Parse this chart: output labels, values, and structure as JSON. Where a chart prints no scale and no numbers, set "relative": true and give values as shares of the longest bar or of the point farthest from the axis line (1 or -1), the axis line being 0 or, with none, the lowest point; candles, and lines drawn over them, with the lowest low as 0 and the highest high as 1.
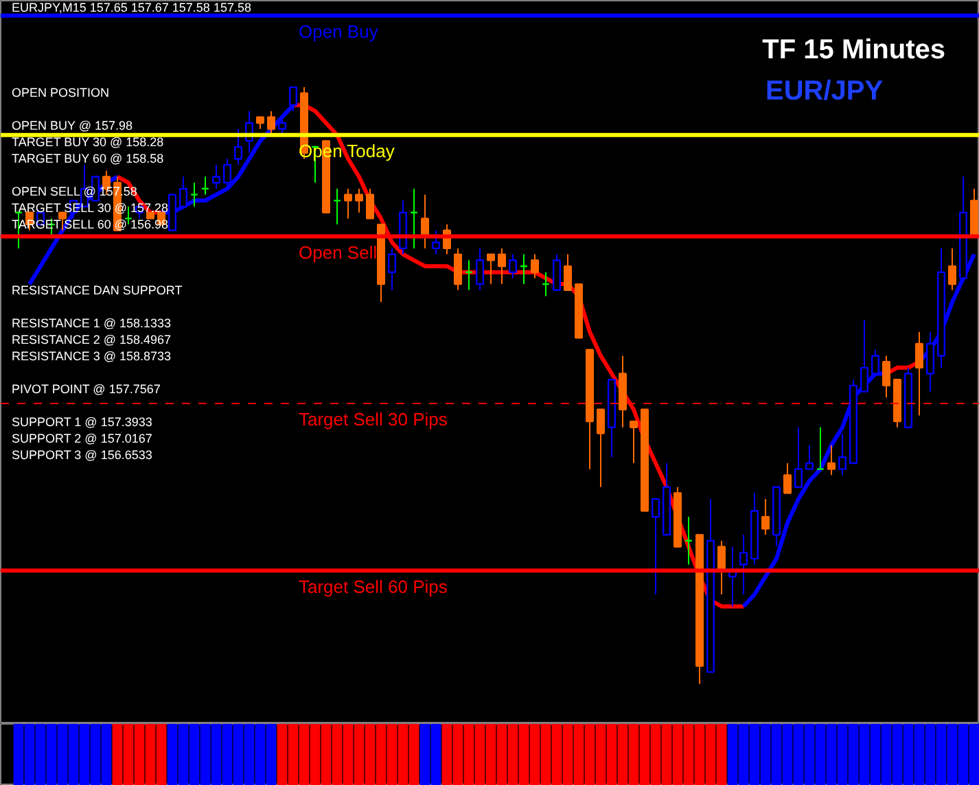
{
  "chart_data": [
    {
      "type": "candlestick",
      "relative": true,
      "title": "EURJPY,M15  157.65 157.67 157.58 157.58",
      "subtitle": "TF 15 Minutes",
      "annotations": [
        "EUR/JPY",
        "OPEN POSITION",
        "OPEN BUY @ 157.98",
        "TARGET BUY 30 @ 158.28",
        "TARGET BUY 60 @ 158.58",
        "OPEN SELL @ 157.58",
        "TARGET SELL 30 @ 157.28",
        "TARGET SELL 60 @ 156.98",
        "RESISTANCE DAN SUPPORT",
        "RESISTANCE 1 @ 158.1333",
        "RESISTANCE 2 @ 158.4967",
        "RESISTANCE 3 @ 158.8733",
        "PIVOT POINT @ 157.7567",
        "SUPPORT 1 @ 157.3933",
        "SUPPORT 2  @ 157.0167",
        "SUPPORT 3 @ 156.6533"
      ],
      "categories": [
        null,
        null,
        null,
        null,
        null,
        null,
        null,
        null,
        null,
        null,
        null,
        null,
        null,
        null,
        null,
        null,
        null,
        null,
        null,
        null,
        null,
        null,
        null,
        null,
        null,
        null,
        null,
        null,
        null,
        null,
        null,
        null,
        null,
        null,
        null,
        null,
        null,
        null,
        null,
        null,
        null,
        null,
        null,
        null,
        null,
        null,
        null,
        null,
        null,
        null,
        null,
        null,
        null,
        null,
        null,
        null,
        null,
        null,
        null,
        null,
        null,
        null,
        null,
        null,
        null,
        null,
        null,
        null,
        null,
        null,
        null,
        null,
        null,
        null,
        null,
        null,
        null,
        null,
        null,
        null,
        null,
        null,
        null,
        null,
        null,
        null,
        null,
        null
      ],
      "ohlc": [
        [
          0.79,
          0.79,
          0.73,
          0.79
        ],
        [
          0.79,
          0.79,
          0.76,
          0.77
        ],
        [
          0.77,
          0.79,
          0.77,
          0.79
        ],
        [
          0.77,
          0.78,
          0.75,
          0.77
        ],
        [
          0.79,
          0.79,
          0.76,
          0.78
        ],
        [
          0.79,
          0.81,
          0.78,
          0.81
        ],
        [
          0.8,
          0.87,
          0.8,
          0.83
        ],
        [
          0.81,
          0.85,
          0.81,
          0.85
        ],
        [
          0.85,
          0.86,
          0.82,
          0.83
        ],
        [
          0.84,
          0.85,
          0.76,
          0.76
        ],
        [
          0.78,
          0.8,
          0.77,
          0.78
        ],
        [
          0.79,
          0.8,
          0.78,
          0.8
        ],
        [
          0.79,
          0.79,
          0.78,
          0.78
        ],
        [
          0.79,
          0.79,
          0.77,
          0.77
        ],
        [
          0.76,
          0.82,
          0.76,
          0.82
        ],
        [
          0.8,
          0.85,
          0.8,
          0.83
        ],
        [
          0.82,
          0.84,
          0.8,
          0.82
        ],
        [
          0.83,
          0.85,
          0.82,
          0.83
        ],
        [
          0.84,
          0.87,
          0.83,
          0.85
        ],
        [
          0.84,
          0.88,
          0.83,
          0.87
        ],
        [
          0.88,
          0.93,
          0.87,
          0.9
        ],
        [
          0.91,
          0.96,
          0.89,
          0.94
        ],
        [
          0.95,
          0.95,
          0.93,
          0.94
        ],
        [
          0.95,
          0.96,
          0.92,
          0.93
        ],
        [
          0.93,
          0.95,
          0.92,
          0.94
        ],
        [
          0.97,
          1.0,
          0.96,
          1.0
        ],
        [
          0.99,
          1.0,
          0.88,
          0.89
        ],
        [
          0.9,
          0.9,
          0.84,
          0.9
        ],
        [
          0.91,
          0.91,
          0.79,
          0.79
        ],
        [
          0.81,
          0.83,
          0.77,
          0.81
        ],
        [
          0.82,
          0.83,
          0.78,
          0.81
        ],
        [
          0.82,
          0.83,
          0.79,
          0.81
        ],
        [
          0.82,
          0.83,
          0.78,
          0.78
        ],
        [
          0.77,
          0.77,
          0.64,
          0.67
        ],
        [
          0.69,
          0.73,
          0.66,
          0.72
        ],
        [
          0.73,
          0.81,
          0.72,
          0.79
        ],
        [
          0.79,
          0.83,
          0.73,
          0.79
        ],
        [
          0.78,
          0.82,
          0.73,
          0.75
        ],
        [
          0.73,
          0.76,
          0.72,
          0.74
        ],
        [
          0.76,
          0.77,
          0.72,
          0.73
        ],
        [
          0.72,
          0.73,
          0.66,
          0.67
        ],
        [
          0.69,
          0.71,
          0.66,
          0.69
        ],
        [
          0.67,
          0.73,
          0.66,
          0.71
        ],
        [
          0.72,
          0.72,
          0.67,
          0.71
        ],
        [
          0.72,
          0.73,
          0.67,
          0.7
        ],
        [
          0.69,
          0.72,
          0.68,
          0.71
        ],
        [
          0.7,
          0.72,
          0.67,
          0.7
        ],
        [
          0.71,
          0.72,
          0.68,
          0.69
        ],
        [
          0.67,
          0.69,
          0.65,
          0.67
        ],
        [
          0.66,
          0.72,
          0.66,
          0.71
        ],
        [
          0.7,
          0.72,
          0.66,
          0.66
        ],
        [
          0.67,
          0.67,
          0.58,
          0.58
        ],
        [
          0.56,
          0.56,
          0.36,
          0.44
        ],
        [
          0.46,
          0.46,
          0.33,
          0.42
        ],
        [
          0.43,
          0.51,
          0.38,
          0.51
        ],
        [
          0.52,
          0.55,
          0.43,
          0.46
        ],
        [
          0.44,
          0.44,
          0.37,
          0.43
        ],
        [
          0.46,
          0.46,
          0.29,
          0.29
        ],
        [
          0.28,
          0.31,
          0.15,
          0.31
        ],
        [
          0.25,
          0.37,
          0.25,
          0.33
        ],
        [
          0.32,
          0.33,
          0.23,
          0.23
        ],
        [
          0.24,
          0.28,
          0.2,
          0.24
        ],
        [
          0.25,
          0.25,
          0.0,
          0.03
        ],
        [
          0.02,
          0.31,
          0.02,
          0.24
        ],
        [
          0.23,
          0.24,
          0.15,
          0.19
        ],
        [
          0.18,
          0.23,
          0.13,
          0.19
        ],
        [
          0.2,
          0.25,
          0.15,
          0.22
        ],
        [
          0.21,
          0.32,
          0.2,
          0.29
        ],
        [
          0.28,
          0.31,
          0.25,
          0.26
        ],
        [
          0.25,
          0.33,
          0.23,
          0.33
        ],
        [
          0.35,
          0.37,
          0.32,
          0.32
        ],
        [
          0.33,
          0.43,
          0.33,
          0.36
        ],
        [
          0.36,
          0.4,
          0.36,
          0.37
        ],
        [
          0.36,
          0.43,
          0.36,
          0.36
        ],
        [
          0.37,
          0.4,
          0.35,
          0.36
        ],
        [
          0.36,
          0.42,
          0.35,
          0.38
        ],
        [
          0.37,
          0.51,
          0.37,
          0.5
        ],
        [
          0.49,
          0.61,
          0.49,
          0.53
        ],
        [
          0.52,
          0.56,
          0.52,
          0.55
        ],
        [
          0.54,
          0.55,
          0.48,
          0.5
        ],
        [
          0.51,
          0.51,
          0.43,
          0.44
        ],
        [
          0.43,
          0.53,
          0.43,
          0.52
        ],
        [
          0.57,
          0.59,
          0.45,
          0.53
        ],
        [
          0.52,
          0.59,
          0.49,
          0.57
        ],
        [
          0.55,
          0.73,
          0.53,
          0.69
        ],
        [
          0.7,
          0.73,
          0.66,
          0.67
        ],
        [
          0.68,
          0.85,
          0.68,
          0.79
        ],
        [
          0.81,
          0.83,
          0.75,
          0.75
        ]
      ],
      "colors": [
        "#00ff00",
        "#ff6a00",
        "#0000ff",
        "#00ff00",
        "#ff6a00",
        "#0000ff",
        "#0000ff",
        "#0000ff",
        "#ff6a00",
        "#ff6a00",
        "#00ff00",
        "#0000ff",
        "#ff6a00",
        "#ff6a00",
        "#0000ff",
        "#0000ff",
        "#00ff00",
        "#00ff00",
        "#0000ff",
        "#0000ff",
        "#0000ff",
        "#0000ff",
        "#ff6a00",
        "#ff6a00",
        "#0000ff",
        "#0000ff",
        "#ff6a00",
        "#00ff00",
        "#ff6a00",
        "#00ff00",
        "#ff6a00",
        "#ff6a00",
        "#ff6a00",
        "#ff6a00",
        "#0000ff",
        "#0000ff",
        "#00ff00",
        "#ff6a00",
        "#0000ff",
        "#ff6a00",
        "#ff6a00",
        "#00ff00",
        "#0000ff",
        "#ff6a00",
        "#ff6a00",
        "#0000ff",
        "#00ff00",
        "#ff6a00",
        "#00ff00",
        "#0000ff",
        "#ff6a00",
        "#ff6a00",
        "#ff6a00",
        "#ff6a00",
        "#0000ff",
        "#ff6a00",
        "#ff6a00",
        "#ff6a00",
        "#0000ff",
        "#0000ff",
        "#ff6a00",
        "#00ff00",
        "#ff6a00",
        "#0000ff",
        "#ff6a00",
        "#0000ff",
        "#0000ff",
        "#0000ff",
        "#ff6a00",
        "#0000ff",
        "#ff6a00",
        "#0000ff",
        "#0000ff",
        "#00ff00",
        "#ff6a00",
        "#0000ff",
        "#0000ff",
        "#0000ff",
        "#0000ff",
        "#ff6a00",
        "#ff6a00",
        "#0000ff",
        "#ff6a00",
        "#0000ff",
        "#0000ff",
        "#ff6a00",
        "#0000ff",
        "#ff6a00"
      ],
      "series": [
        {
          "type": "line",
          "color": "#ff0000",
          "values": [
            null,
            null,
            null,
            null,
            null,
            null,
            null,
            null,
            null,
            0.85,
            0.84,
            0.81,
            0.79,
            0.79,
            null,
            null,
            null,
            null,
            null,
            null,
            null,
            null,
            null,
            null,
            null,
            0.97,
            0.97,
            0.96,
            0.94,
            0.92,
            0.88,
            0.85,
            0.81,
            0.78,
            0.74,
            0.72,
            0.71,
            0.7,
            0.7,
            0.7,
            0.69,
            0.69,
            0.69,
            0.69,
            0.69,
            0.69,
            0.69,
            0.69,
            0.68,
            0.67,
            0.67,
            0.65,
            0.59,
            0.55,
            0.52,
            0.49,
            0.46,
            0.41,
            0.37,
            0.33,
            0.28,
            0.23,
            0.18,
            0.14,
            0.13,
            0.13,
            0.13,
            null,
            null,
            null,
            null,
            null,
            null,
            null,
            null,
            null,
            null,
            null,
            null,
            0.52,
            0.53,
            0.53,
            0.54,
            null,
            null,
            null,
            null,
            null
          ]
        },
        {
          "type": "line",
          "color": "#0000ff",
          "values": [
            null,
            0.67,
            0.7,
            0.73,
            0.76,
            0.79,
            0.81,
            0.82,
            0.84,
            0.85,
            null,
            null,
            null,
            0.79,
            0.79,
            0.8,
            0.81,
            0.81,
            0.82,
            0.83,
            0.85,
            0.88,
            0.91,
            0.93,
            0.95,
            0.97,
            null,
            null,
            null,
            null,
            null,
            null,
            null,
            null,
            null,
            null,
            null,
            null,
            null,
            null,
            null,
            null,
            null,
            null,
            null,
            null,
            null,
            null,
            null,
            null,
            null,
            null,
            null,
            null,
            null,
            null,
            null,
            null,
            null,
            null,
            null,
            null,
            null,
            null,
            null,
            null,
            0.13,
            0.15,
            0.18,
            0.21,
            0.27,
            0.31,
            0.34,
            0.36,
            0.4,
            0.43,
            0.48,
            0.5,
            0.52,
            0.52,
            null,
            null,
            0.54,
            0.56,
            0.59,
            0.64,
            0.68,
            0.72
          ]
        }
      ],
      "ref_lines": [
        {
          "axis": "y",
          "value": 1.12,
          "label": "Open Buy",
          "color": "#0000ff",
          "line_style": "solid"
        },
        {
          "axis": "y",
          "value": 0.92,
          "label": "Open Today",
          "color": "#ffff00",
          "line_style": "solid"
        },
        {
          "axis": "y",
          "value": 0.75,
          "label": "Open Sell",
          "color": "#ff0000",
          "line_style": "solid"
        },
        {
          "axis": "y",
          "value": 0.47,
          "label": "Target Sell 30 Pips",
          "color": "#ff0000",
          "line_style": "dashed"
        },
        {
          "axis": "y",
          "value": 0.19,
          "label": "Target Sell 60 Pips",
          "color": "#ff0000",
          "line_style": "solid"
        }
      ],
      "tick_labels": false,
      "grid": false
    },
    {
      "type": "bar",
      "relative": true,
      "tick_labels": false,
      "grid": false,
      "categories": [
        null,
        null,
        null,
        null,
        null,
        null,
        null,
        null,
        null,
        null,
        null,
        null,
        null,
        null,
        null,
        null,
        null,
        null,
        null,
        null,
        null,
        null,
        null,
        null,
        null,
        null,
        null,
        null,
        null,
        null,
        null,
        null,
        null,
        null,
        null,
        null,
        null,
        null,
        null,
        null,
        null,
        null,
        null,
        null,
        null,
        null,
        null,
        null,
        null,
        null,
        null,
        null,
        null,
        null,
        null,
        null,
        null,
        null,
        null,
        null,
        null,
        null,
        null,
        null,
        null,
        null,
        null,
        null,
        null,
        null,
        null,
        null,
        null,
        null,
        null,
        null,
        null,
        null,
        null,
        null,
        null,
        null,
        null,
        null,
        null,
        null,
        null,
        null
      ],
      "values": [
        1,
        1,
        1,
        1,
        1,
        1,
        1,
        1,
        1,
        1,
        1,
        1,
        1,
        1,
        1,
        1,
        1,
        1,
        1,
        1,
        1,
        1,
        1,
        1,
        1,
        1,
        1,
        1,
        1,
        1,
        1,
        1,
        1,
        1,
        1,
        1,
        1,
        1,
        1,
        1,
        1,
        1,
        1,
        1,
        1,
        1,
        1,
        1,
        1,
        1,
        1,
        1,
        1,
        1,
        1,
        1,
        1,
        1,
        1,
        1,
        1,
        1,
        1,
        1,
        1,
        1,
        1,
        1,
        1,
        1,
        1,
        1,
        1,
        1,
        1,
        1,
        1,
        1,
        1,
        1,
        1,
        1,
        1,
        1,
        1,
        1,
        1,
        1
      ],
      "colors": [
        "#0000ff",
        "#0000ff",
        "#0000ff",
        "#0000ff",
        "#0000ff",
        "#0000ff",
        "#0000ff",
        "#0000ff",
        "#0000ff",
        "#ff0000",
        "#ff0000",
        "#ff0000",
        "#ff0000",
        "#ff0000",
        "#0000ff",
        "#0000ff",
        "#0000ff",
        "#0000ff",
        "#0000ff",
        "#0000ff",
        "#0000ff",
        "#0000ff",
        "#0000ff",
        "#0000ff",
        "#ff0000",
        "#ff0000",
        "#ff0000",
        "#ff0000",
        "#ff0000",
        "#ff0000",
        "#ff0000",
        "#ff0000",
        "#ff0000",
        "#ff0000",
        "#ff0000",
        "#ff0000",
        "#ff0000",
        "#0000ff",
        "#0000ff",
        "#ff0000",
        "#ff0000",
        "#ff0000",
        "#ff0000",
        "#ff0000",
        "#ff0000",
        "#ff0000",
        "#ff0000",
        "#ff0000",
        "#ff0000",
        "#ff0000",
        "#ff0000",
        "#ff0000",
        "#ff0000",
        "#ff0000",
        "#ff0000",
        "#ff0000",
        "#ff0000",
        "#ff0000",
        "#ff0000",
        "#ff0000",
        "#ff0000",
        "#ff0000",
        "#ff0000",
        "#ff0000",
        "#ff0000",
        "#0000ff",
        "#0000ff",
        "#0000ff",
        "#0000ff",
        "#0000ff",
        "#0000ff",
        "#0000ff",
        "#0000ff",
        "#0000ff",
        "#0000ff",
        "#0000ff",
        "#0000ff",
        "#0000ff",
        "#0000ff",
        "#0000ff",
        "#0000ff",
        "#0000ff",
        "#0000ff",
        "#0000ff",
        "#0000ff",
        "#0000ff",
        "#0000ff",
        "#0000ff"
      ]
    }
  ]
}
